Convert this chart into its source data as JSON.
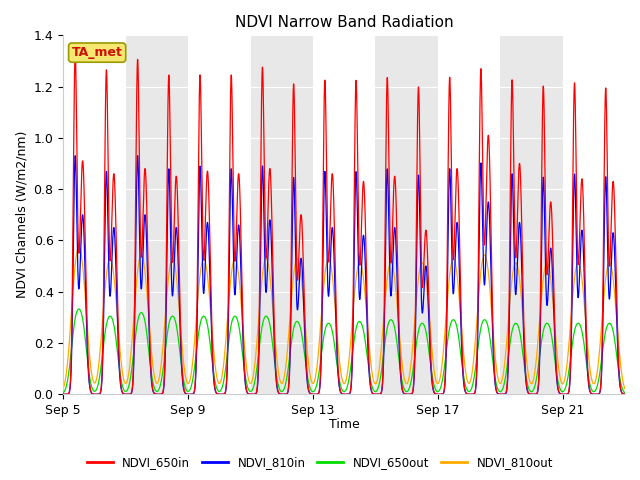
{
  "title": "NDVI Narrow Band Radiation",
  "ylabel": "NDVI Channels (W/m2/nm)",
  "xlabel": "Time",
  "station_label": "TA_met",
  "ylim": [
    0.0,
    1.4
  ],
  "yticks": [
    0.0,
    0.2,
    0.4,
    0.6,
    0.8,
    1.0,
    1.2,
    1.4
  ],
  "xtick_labels": [
    "Sep 5",
    "Sep 9",
    "Sep 13",
    "Sep 17",
    "Sep 21"
  ],
  "xtick_positions": [
    0,
    4,
    8,
    12,
    16
  ],
  "colors": {
    "NDVI_650in": "#ff0000",
    "NDVI_810in": "#0000ff",
    "NDVI_650out": "#00dd00",
    "NDVI_810out": "#ffaa00"
  },
  "title_fontsize": 11,
  "label_fontsize": 9,
  "tick_fontsize": 9,
  "bg_color": "#ffffff",
  "plot_bg_color": "#ffffff",
  "band_color": "#e8e8e8",
  "n_days": 18,
  "peaks_650in": [
    1.3,
    1.24,
    1.28,
    1.22,
    1.22,
    1.22,
    1.25,
    1.19,
    1.2,
    1.2,
    1.21,
    1.18,
    1.21,
    1.24,
    1.2,
    1.18,
    1.19,
    1.17
  ],
  "peaks2_650in": [
    0.91,
    0.86,
    0.88,
    0.85,
    0.87,
    0.86,
    0.88,
    0.7,
    0.86,
    0.83,
    0.85,
    0.64,
    0.88,
    1.01,
    0.9,
    0.75,
    0.84,
    0.83
  ],
  "peaks_810in": [
    0.91,
    0.85,
    0.91,
    0.86,
    0.87,
    0.86,
    0.87,
    0.83,
    0.85,
    0.85,
    0.86,
    0.84,
    0.86,
    0.88,
    0.84,
    0.83,
    0.84,
    0.83
  ],
  "peaks2_810in": [
    0.7,
    0.65,
    0.7,
    0.65,
    0.67,
    0.66,
    0.68,
    0.53,
    0.65,
    0.62,
    0.65,
    0.5,
    0.67,
    0.75,
    0.67,
    0.57,
    0.64,
    0.63
  ],
  "peaks_650out": [
    0.24,
    0.22,
    0.23,
    0.22,
    0.22,
    0.22,
    0.22,
    0.21,
    0.2,
    0.21,
    0.21,
    0.2,
    0.21,
    0.21,
    0.2,
    0.2,
    0.2,
    0.2
  ],
  "peaks2_650out": [
    0.24,
    0.22,
    0.23,
    0.22,
    0.22,
    0.22,
    0.22,
    0.2,
    0.2,
    0.2,
    0.21,
    0.2,
    0.21,
    0.21,
    0.2,
    0.2,
    0.2,
    0.2
  ],
  "peaks_810out": [
    0.38,
    0.35,
    0.36,
    0.35,
    0.35,
    0.35,
    0.35,
    0.35,
    0.35,
    0.34,
    0.34,
    0.34,
    0.35,
    0.36,
    0.34,
    0.34,
    0.34,
    0.34
  ],
  "peaks2_810out": [
    0.38,
    0.35,
    0.36,
    0.35,
    0.35,
    0.35,
    0.35,
    0.35,
    0.35,
    0.34,
    0.34,
    0.34,
    0.35,
    0.36,
    0.34,
    0.34,
    0.34,
    0.34
  ]
}
